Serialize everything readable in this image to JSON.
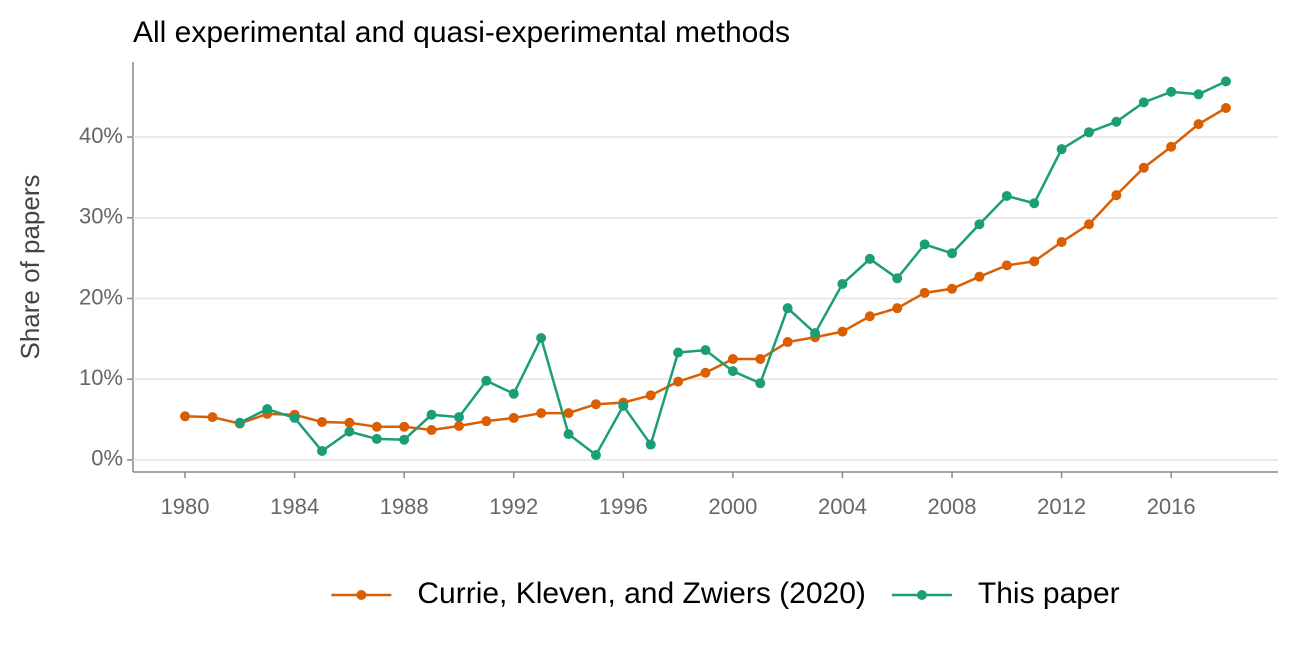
{
  "chart_data": {
    "type": "line",
    "title": "All experimental and quasi-experimental methods",
    "y_label": "Share of papers",
    "x": [
      1980,
      1981,
      1982,
      1983,
      1984,
      1985,
      1986,
      1987,
      1988,
      1989,
      1990,
      1991,
      1992,
      1993,
      1994,
      1995,
      1996,
      1997,
      1998,
      1999,
      2000,
      2001,
      2002,
      2003,
      2004,
      2005,
      2006,
      2007,
      2008,
      2009,
      2010,
      2011,
      2012,
      2013,
      2014,
      2015,
      2016,
      2017,
      2018
    ],
    "series": [
      {
        "name": "Currie, Kleven, and Zwiers (2020)",
        "color": "#d95f02",
        "values": [
          5.4,
          5.3,
          4.5,
          5.7,
          5.6,
          4.7,
          4.6,
          4.1,
          4.1,
          3.7,
          4.2,
          4.8,
          5.2,
          5.8,
          5.8,
          6.9,
          7.1,
          8.0,
          9.7,
          10.8,
          12.5,
          12.5,
          14.6,
          15.2,
          15.9,
          17.8,
          18.8,
          20.7,
          21.2,
          22.7,
          24.1,
          24.6,
          27.0,
          29.2,
          32.8,
          36.2,
          38.8,
          41.6,
          43.6
        ]
      },
      {
        "name": "This paper",
        "color": "#1b9e77",
        "values": [
          null,
          null,
          4.6,
          6.3,
          5.2,
          1.1,
          3.5,
          2.6,
          2.5,
          5.6,
          5.3,
          9.8,
          8.2,
          15.1,
          3.2,
          0.6,
          6.7,
          1.9,
          13.3,
          13.6,
          11.0,
          9.5,
          18.8,
          15.7,
          21.8,
          24.9,
          22.5,
          26.7,
          25.6,
          29.2,
          32.7,
          31.8,
          38.5,
          40.6,
          41.9,
          44.3,
          45.6,
          45.3,
          46.9
        ]
      }
    ],
    "xlim": [
      1978.1,
      2019.9
    ],
    "xticks": [
      1980,
      1984,
      1988,
      1992,
      1996,
      2000,
      2004,
      2008,
      2012,
      2016
    ],
    "ylim": [
      -1.5,
      49.3
    ],
    "yticks": [
      {
        "value": 0,
        "label": "0%"
      },
      {
        "value": 10,
        "label": "10%"
      },
      {
        "value": 20,
        "label": "20%"
      },
      {
        "value": 30,
        "label": "30%"
      },
      {
        "value": 40,
        "label": "40%"
      }
    ],
    "grid": true,
    "legend": "bottom"
  }
}
